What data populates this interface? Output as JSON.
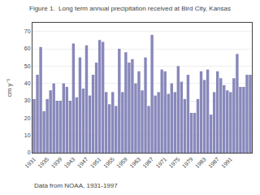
{
  "chart_data": {
    "type": "bar",
    "title": "Figure 1.  Long term annual precipitation received at Bird City, Kansas",
    "ylabel": "cm y⁻¹",
    "annotations": [
      "Data from NOAA, 1931-1997"
    ],
    "categories": [
      "1931",
      null,
      null,
      null,
      "1935",
      null,
      null,
      null,
      "1939",
      null,
      null,
      null,
      "1943",
      null,
      null,
      null,
      "1947",
      null,
      null,
      null,
      "1951",
      null,
      null,
      null,
      "1955",
      null,
      null,
      null,
      "1959",
      null,
      null,
      null,
      "1963",
      null,
      null,
      null,
      "1967",
      null,
      null,
      null,
      "1971",
      null,
      null,
      null,
      "1975",
      null,
      null,
      null,
      "1979",
      null,
      null,
      null,
      "1983",
      null,
      null,
      null,
      "1987",
      null,
      null,
      null,
      "1991",
      null,
      null,
      null,
      null,
      null,
      null
    ],
    "values": [
      31,
      45,
      61,
      24,
      31,
      36,
      40,
      30,
      30,
      40,
      38,
      30,
      63,
      32,
      55,
      37,
      62,
      33,
      45,
      52,
      65,
      64,
      35,
      28,
      35,
      27,
      60,
      35,
      58,
      52,
      54,
      40,
      47,
      36,
      55,
      27,
      68,
      33,
      35,
      48,
      47,
      34,
      40,
      35,
      50,
      41,
      31,
      45,
      23,
      23,
      31,
      47,
      42,
      48,
      22,
      35,
      47,
      43,
      39,
      36,
      35,
      43,
      57,
      38,
      38,
      45,
      45
    ],
    "color": "#8888bb",
    "ylim": [
      0,
      75
    ],
    "yticks": [
      0,
      10,
      20,
      30,
      40,
      50,
      60,
      70
    ],
    "grid": true
  }
}
